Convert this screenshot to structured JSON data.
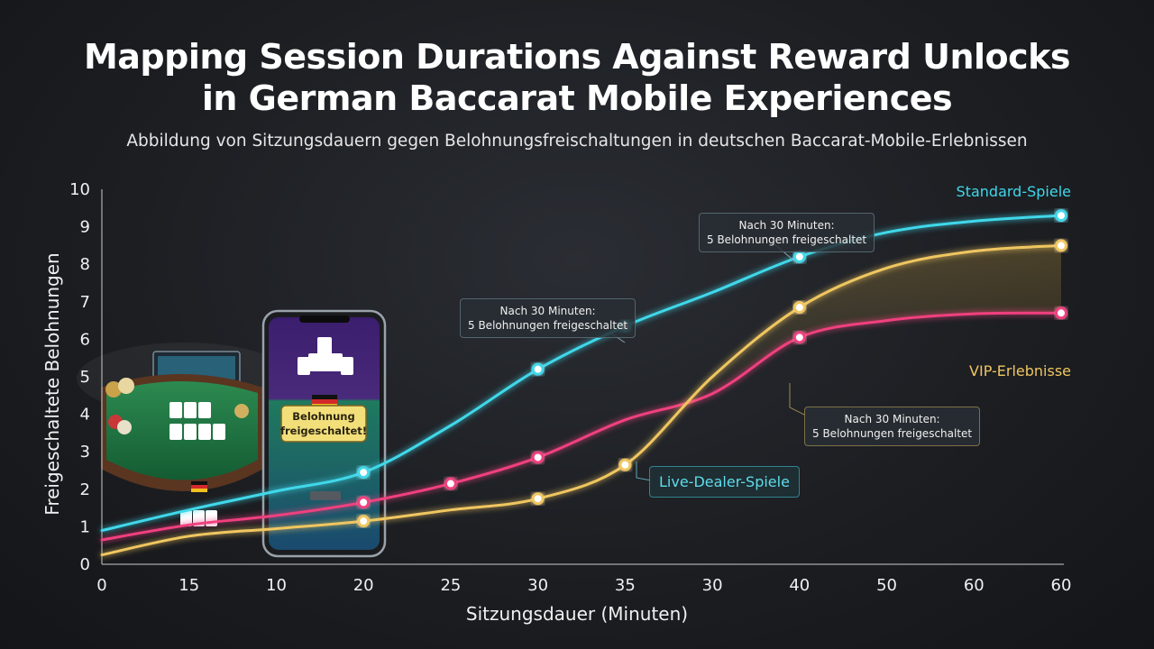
{
  "title_line1": "Mapping Session Durations Against Reward Unlocks",
  "title_line2": "in German Baccarat Mobile Experiences",
  "subtitle": "Abbildung von Sitzungsdauern gegen Belohnungsfreischaltungen in deutschen Baccarat-Mobile-Erlebnissen",
  "colors": {
    "standard": "#3fd8ea",
    "vip": "#f0c660",
    "live": "#f0407e"
  },
  "chart_data": {
    "type": "line",
    "xlabel": "Sitzungsdauer (Minuten)",
    "ylabel": "Freigeschaltete Belohnungen",
    "ylim": [
      0,
      10
    ],
    "grid": false,
    "y_ticks": [
      "0",
      "1",
      "2",
      "3",
      "4",
      "5",
      "6",
      "7",
      "8",
      "9",
      "10"
    ],
    "x_tick_labels": [
      "0",
      "15",
      "10",
      "20",
      "25",
      "30",
      "35",
      "30",
      "40",
      "50",
      "60",
      "60"
    ],
    "series": [
      {
        "name": "Standard-Spiele",
        "key": "standard",
        "values": [
          0.9,
          1.45,
          1.95,
          2.45,
          3.7,
          5.2,
          6.35,
          7.25,
          8.2,
          8.85,
          9.15,
          9.3
        ],
        "markers": [
          3,
          5,
          6,
          8,
          11
        ]
      },
      {
        "name": "Live-Dealer-Spiele",
        "key": "live",
        "values": [
          0.65,
          1.05,
          1.3,
          1.65,
          2.15,
          2.85,
          3.85,
          4.55,
          6.05,
          6.5,
          6.68,
          6.7
        ],
        "markers": [
          3,
          4,
          5,
          8,
          11
        ]
      },
      {
        "name": "VIP-Erlebnisse",
        "key": "vip",
        "values": [
          0.25,
          0.75,
          0.95,
          1.15,
          1.45,
          1.75,
          2.65,
          5.0,
          6.85,
          7.9,
          8.35,
          8.5
        ],
        "markers": [
          3,
          5,
          6,
          8,
          11
        ]
      }
    ],
    "annotations": [
      {
        "line1": "Nach 30 Minuten:",
        "line2": "5 Belohnungen freigeschaltet"
      },
      {
        "line1": "Nach 30 Minuten:",
        "line2": "5 Belohnungen freigeschaltet"
      },
      {
        "line1": "Nach 30 Minuten:",
        "line2": "5 Belohnungen freigeschaltet"
      }
    ]
  },
  "phone_banner": {
    "line1": "Belohnung",
    "line2": "freigeschaltet!"
  }
}
